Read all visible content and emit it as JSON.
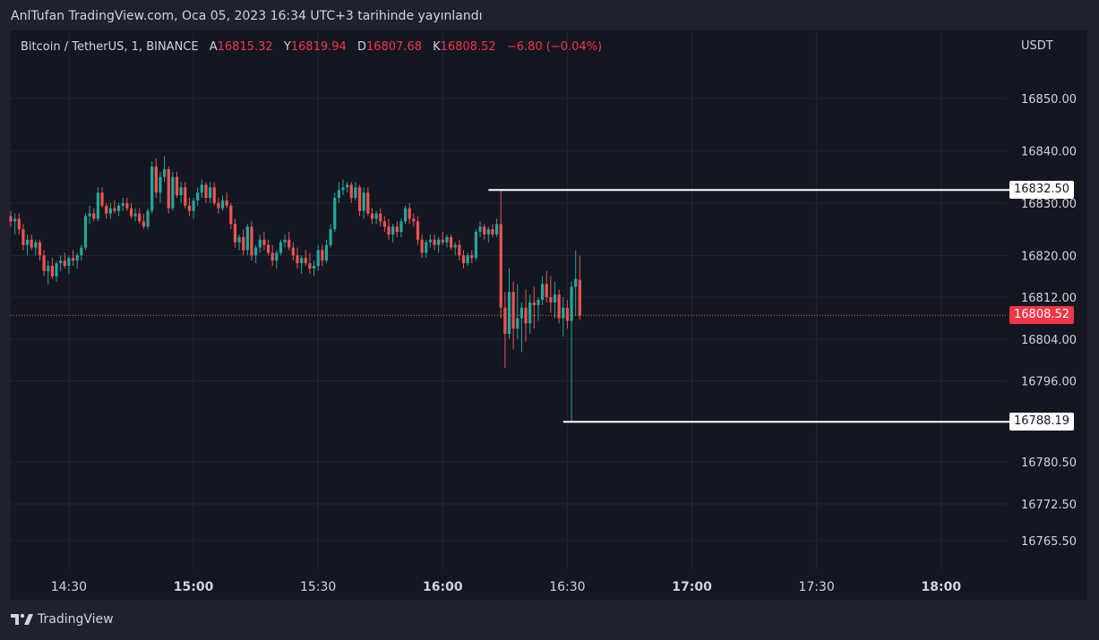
{
  "header": {
    "published": "AnlTufan TradingView.com, Oca 05, 2023 16:34 UTC+3 tarihinde yayınlandı"
  },
  "legend": {
    "symbol": "Bitcoin / TetherUS, 1, BINANCE",
    "open_label": "A",
    "open": "16815.32",
    "high_label": "Y",
    "high": "16819.94",
    "low_label": "D",
    "low": "16807.68",
    "close_label": "K",
    "close": "16808.52",
    "change": "−6.80 (−0.04%)"
  },
  "footer": {
    "brand": "TradingView"
  },
  "colors": {
    "up": "#26a69a",
    "down": "#ef5350",
    "bg": "#131722",
    "frame": "#1e222d",
    "text": "#d1d4dc",
    "grid": "#222633",
    "price_tag": "#f23645"
  },
  "chart_data": {
    "type": "candlestick",
    "currency": "USDT",
    "y_ticks": [
      "16850.00",
      "16840.00",
      "16830.00",
      "16820.00",
      "16812.00",
      "16804.00",
      "16796.00",
      "16780.50",
      "16772.50",
      "16765.50"
    ],
    "x_ticks": [
      "14:30",
      "15:00",
      "15:30",
      "16:00",
      "16:30",
      "17:00",
      "17:30",
      "18:00"
    ],
    "x_ticks_bold": [
      "15:00",
      "16:00",
      "17:00",
      "18:00"
    ],
    "y_range": [
      16760,
      16863
    ],
    "x_range_minutes": [
      "14:16",
      "18:16"
    ],
    "current_price": "16808.52",
    "horizontal_lines": [
      {
        "price": "16832.50",
        "from_time": "16:11"
      },
      {
        "price": "16788.19",
        "from_time": "16:29"
      }
    ],
    "candles": [
      [
        16827.5,
        16828.5,
        16825.5,
        16826.5
      ],
      [
        16826.5,
        16828.0,
        16824.0,
        16827.0
      ],
      [
        16827.0,
        16828.0,
        16824.0,
        16825.0
      ],
      [
        16825.0,
        16826.0,
        16821.0,
        16822.0
      ],
      [
        16822.0,
        16824.0,
        16820.0,
        16823.0
      ],
      [
        16823.0,
        16824.0,
        16821.0,
        16821.5
      ],
      [
        16821.5,
        16823.0,
        16820.0,
        16822.5
      ],
      [
        16822.5,
        16823.0,
        16819.0,
        16820.0
      ],
      [
        16820.0,
        16821.0,
        16816.0,
        16817.0
      ],
      [
        16817.0,
        16819.0,
        16814.5,
        16818.0
      ],
      [
        16818.0,
        16819.5,
        16815.5,
        16816.0
      ],
      [
        16816.0,
        16819.0,
        16815.0,
        16818.5
      ],
      [
        16818.5,
        16820.0,
        16817.0,
        16819.0
      ],
      [
        16819.0,
        16820.5,
        16817.5,
        16818.0
      ],
      [
        16818.0,
        16820.0,
        16816.5,
        16819.5
      ],
      [
        16819.5,
        16821.0,
        16818.0,
        16819.0
      ],
      [
        16819.0,
        16820.5,
        16817.5,
        16820.0
      ],
      [
        16820.0,
        16822.0,
        16819.0,
        16821.5
      ],
      [
        16821.5,
        16828.0,
        16821.0,
        16827.5
      ],
      [
        16827.5,
        16829.5,
        16826.0,
        16828.0
      ],
      [
        16828.0,
        16829.0,
        16826.5,
        16827.0
      ],
      [
        16827.0,
        16833.0,
        16826.5,
        16832.0
      ],
      [
        16832.0,
        16833.0,
        16829.0,
        16829.5
      ],
      [
        16829.5,
        16830.0,
        16827.0,
        16828.0
      ],
      [
        16828.0,
        16830.0,
        16827.0,
        16829.0
      ],
      [
        16829.0,
        16830.5,
        16828.0,
        16828.5
      ],
      [
        16828.5,
        16830.0,
        16827.5,
        16829.5
      ],
      [
        16829.5,
        16831.0,
        16828.5,
        16830.0
      ],
      [
        16830.0,
        16831.0,
        16828.5,
        16829.0
      ],
      [
        16829.0,
        16830.0,
        16827.0,
        16827.5
      ],
      [
        16827.5,
        16829.0,
        16826.5,
        16828.0
      ],
      [
        16828.0,
        16829.0,
        16826.0,
        16826.5
      ],
      [
        16826.5,
        16828.0,
        16825.0,
        16825.5
      ],
      [
        16825.5,
        16829.0,
        16825.0,
        16828.5
      ],
      [
        16828.5,
        16838.0,
        16828.0,
        16837.0
      ],
      [
        16837.0,
        16838.5,
        16831.0,
        16832.0
      ],
      [
        16832.0,
        16836.0,
        16830.0,
        16835.0
      ],
      [
        16835.0,
        16839.0,
        16834.0,
        16836.5
      ],
      [
        16836.5,
        16837.0,
        16828.0,
        16829.0
      ],
      [
        16829.0,
        16836.0,
        16828.5,
        16835.0
      ],
      [
        16835.0,
        16836.0,
        16831.0,
        16831.5
      ],
      [
        16831.5,
        16834.0,
        16830.0,
        16833.0
      ],
      [
        16833.0,
        16834.0,
        16829.0,
        16829.5
      ],
      [
        16829.5,
        16831.0,
        16827.5,
        16828.5
      ],
      [
        16828.5,
        16831.0,
        16827.0,
        16830.5
      ],
      [
        16830.5,
        16833.0,
        16829.5,
        16832.0
      ],
      [
        16832.0,
        16834.5,
        16831.0,
        16833.5
      ],
      [
        16833.5,
        16834.0,
        16830.0,
        16831.0
      ],
      [
        16831.0,
        16834.0,
        16830.0,
        16833.0
      ],
      [
        16833.0,
        16834.0,
        16829.5,
        16830.0
      ],
      [
        16830.0,
        16831.0,
        16828.0,
        16829.0
      ],
      [
        16829.0,
        16831.5,
        16828.5,
        16830.5
      ],
      [
        16830.5,
        16832.0,
        16829.0,
        16829.5
      ],
      [
        16829.5,
        16830.0,
        16825.0,
        16826.0
      ],
      [
        16826.0,
        16827.0,
        16821.5,
        16822.5
      ],
      [
        16822.5,
        16824.0,
        16821.0,
        16823.5
      ],
      [
        16823.5,
        16825.0,
        16820.0,
        16821.0
      ],
      [
        16821.0,
        16826.0,
        16820.0,
        16825.5
      ],
      [
        16825.5,
        16826.5,
        16819.0,
        16820.0
      ],
      [
        16820.0,
        16822.0,
        16818.5,
        16821.5
      ],
      [
        16821.5,
        16824.0,
        16820.5,
        16823.0
      ],
      [
        16823.0,
        16824.5,
        16821.0,
        16822.0
      ],
      [
        16822.0,
        16823.0,
        16820.0,
        16820.5
      ],
      [
        16820.5,
        16822.0,
        16818.0,
        16819.0
      ],
      [
        16819.0,
        16821.0,
        16817.5,
        16820.5
      ],
      [
        16820.5,
        16823.0,
        16820.0,
        16822.5
      ],
      [
        16822.5,
        16824.0,
        16821.5,
        16823.0
      ],
      [
        16823.0,
        16824.5,
        16821.0,
        16821.5
      ],
      [
        16821.5,
        16822.5,
        16819.0,
        16820.0
      ],
      [
        16820.0,
        16821.5,
        16817.5,
        16818.5
      ],
      [
        16818.5,
        16820.0,
        16816.5,
        16819.5
      ],
      [
        16819.5,
        16821.0,
        16818.0,
        16818.5
      ],
      [
        16818.5,
        16820.5,
        16816.5,
        16817.5
      ],
      [
        16817.5,
        16819.0,
        16816.0,
        16818.0
      ],
      [
        16818.0,
        16822.0,
        16817.0,
        16821.0
      ],
      [
        16821.0,
        16822.0,
        16818.0,
        16819.0
      ],
      [
        16819.0,
        16823.0,
        16818.5,
        16822.0
      ],
      [
        16822.0,
        16826.0,
        16821.5,
        16825.0
      ],
      [
        16825.0,
        16832.0,
        16824.5,
        16831.0
      ],
      [
        16831.0,
        16834.0,
        16830.0,
        16832.5
      ],
      [
        16832.5,
        16834.5,
        16831.5,
        16833.0
      ],
      [
        16833.0,
        16834.0,
        16832.0,
        16833.5
      ],
      [
        16833.5,
        16834.0,
        16830.0,
        16831.0
      ],
      [
        16831.0,
        16834.0,
        16830.5,
        16833.0
      ],
      [
        16833.0,
        16833.5,
        16827.5,
        16828.5
      ],
      [
        16828.5,
        16833.0,
        16827.0,
        16832.0
      ],
      [
        16832.0,
        16833.0,
        16827.5,
        16828.0
      ],
      [
        16828.0,
        16829.0,
        16826.0,
        16827.0
      ],
      [
        16827.0,
        16828.5,
        16826.0,
        16828.0
      ],
      [
        16828.0,
        16829.0,
        16825.5,
        16826.5
      ],
      [
        16826.5,
        16827.5,
        16824.5,
        16825.5
      ],
      [
        16825.5,
        16827.0,
        16823.0,
        16824.0
      ],
      [
        16824.0,
        16826.0,
        16822.5,
        16825.5
      ],
      [
        16825.5,
        16826.5,
        16823.5,
        16824.5
      ],
      [
        16824.5,
        16827.0,
        16823.5,
        16826.5
      ],
      [
        16826.5,
        16829.5,
        16826.0,
        16829.0
      ],
      [
        16829.0,
        16830.0,
        16826.0,
        16827.0
      ],
      [
        16827.0,
        16828.0,
        16825.5,
        16826.5
      ],
      [
        16826.5,
        16827.5,
        16822.0,
        16823.0
      ],
      [
        16823.0,
        16824.0,
        16819.5,
        16820.5
      ],
      [
        16820.5,
        16823.0,
        16819.5,
        16822.5
      ],
      [
        16822.5,
        16824.0,
        16821.5,
        16823.0
      ],
      [
        16823.0,
        16824.0,
        16821.0,
        16822.0
      ],
      [
        16822.0,
        16823.5,
        16820.5,
        16823.0
      ],
      [
        16823.0,
        16824.5,
        16822.0,
        16822.5
      ],
      [
        16822.5,
        16824.0,
        16821.5,
        16823.5
      ],
      [
        16823.5,
        16824.0,
        16821.0,
        16821.5
      ],
      [
        16821.5,
        16822.5,
        16820.0,
        16822.0
      ],
      [
        16822.0,
        16823.0,
        16819.0,
        16820.0
      ],
      [
        16820.0,
        16821.0,
        16817.5,
        16818.5
      ],
      [
        16818.5,
        16820.5,
        16818.0,
        16820.0
      ],
      [
        16820.0,
        16821.0,
        16818.5,
        16819.5
      ],
      [
        16819.5,
        16825.0,
        16819.0,
        16824.5
      ],
      [
        16824.5,
        16826.5,
        16823.5,
        16825.5
      ],
      [
        16825.5,
        16826.0,
        16823.0,
        16824.0
      ],
      [
        16824.0,
        16825.5,
        16822.5,
        16825.0
      ],
      [
        16825.0,
        16826.0,
        16823.5,
        16824.0
      ],
      [
        16824.0,
        16827.0,
        16823.5,
        16826.0
      ],
      [
        16826.0,
        16832.5,
        16808.0,
        16810.0
      ],
      [
        16810.0,
        16813.0,
        16798.5,
        16805.0
      ],
      [
        16805.0,
        16817.5,
        16804.0,
        16813.0
      ],
      [
        16813.0,
        16815.0,
        16802.0,
        16806.0
      ],
      [
        16806.0,
        16814.5,
        16804.0,
        16808.0
      ],
      [
        16808.0,
        16811.0,
        16801.5,
        16810.0
      ],
      [
        16810.0,
        16813.5,
        16803.5,
        16807.0
      ],
      [
        16807.0,
        16812.5,
        16805.0,
        16811.0
      ],
      [
        16811.0,
        16814.0,
        16806.0,
        16810.5
      ],
      [
        16810.5,
        16812.0,
        16807.5,
        16811.5
      ],
      [
        16811.5,
        16816.0,
        16810.5,
        16814.5
      ],
      [
        16814.5,
        16817.0,
        16811.0,
        16812.0
      ],
      [
        16812.0,
        16816.0,
        16809.0,
        16811.0
      ],
      [
        16811.0,
        16815.0,
        16808.0,
        16812.5
      ],
      [
        16812.5,
        16813.5,
        16807.0,
        16808.0
      ],
      [
        16808.0,
        16812.0,
        16804.5,
        16810.0
      ],
      [
        16810.0,
        16811.5,
        16806.0,
        16807.5
      ],
      [
        16807.5,
        16815.0,
        16788.19,
        16814.0
      ],
      [
        16814.0,
        16821.0,
        16808.5,
        16815.5
      ],
      [
        16815.32,
        16819.94,
        16807.68,
        16808.52
      ]
    ]
  }
}
